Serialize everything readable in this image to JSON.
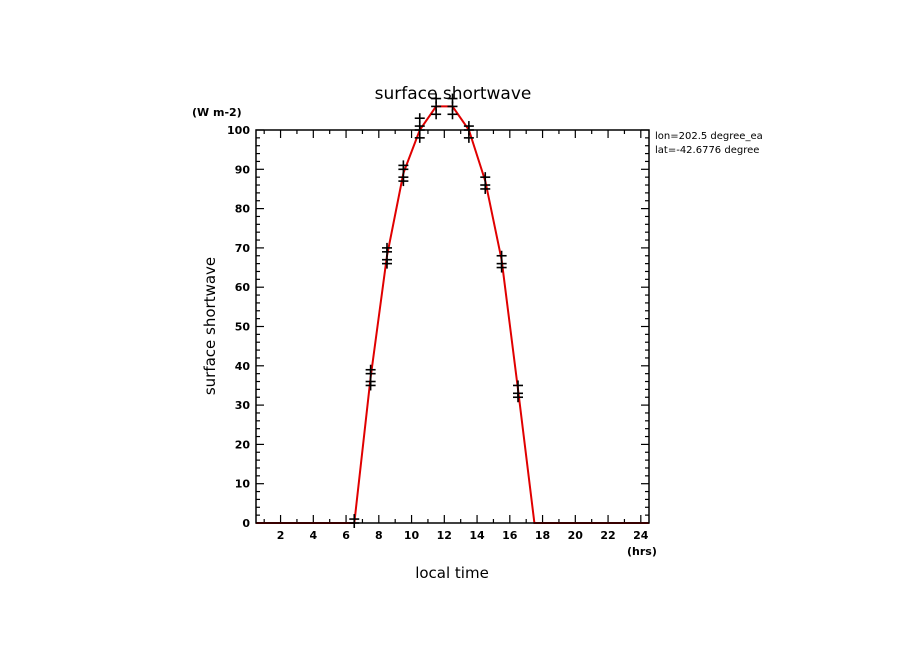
{
  "chart_data": {
    "type": "line",
    "title": "surface shortwave",
    "xlabel": "local time",
    "ylabel": "surface shortwave",
    "y_units": "(W m-2)",
    "x_units": "(hrs)",
    "annotations": [
      "lon=202.5 degree_ea",
      "lat=-42.6776 degree"
    ],
    "xlim": [
      0.5,
      24.5
    ],
    "ylim": [
      0,
      100
    ],
    "x_ticks": [
      2,
      4,
      6,
      8,
      10,
      12,
      14,
      16,
      18,
      20,
      22,
      24
    ],
    "y_ticks": [
      0,
      10,
      20,
      30,
      40,
      50,
      60,
      70,
      80,
      90,
      100
    ],
    "grid": false,
    "series": [
      {
        "style": "line",
        "color": "#e00000",
        "x": [
          0.5,
          1.5,
          2.5,
          3.5,
          4.5,
          5.5,
          6.5,
          7.5,
          8.5,
          9.5,
          10.5,
          11.5,
          12.5,
          13.5,
          14.5,
          15.5,
          16.5,
          17.5,
          18.5,
          19.5,
          20.5,
          21.5,
          22.5,
          23.5,
          24.5
        ],
        "y": [
          0,
          0,
          0,
          0,
          0,
          0,
          0,
          37,
          68,
          89,
          100,
          106,
          106,
          100,
          87,
          67,
          34,
          0,
          0,
          0,
          0,
          0,
          0,
          0,
          0
        ]
      },
      {
        "style": "markers",
        "marker": "plus",
        "color": "#000000",
        "points": [
          [
            6.5,
            0
          ],
          [
            6.5,
            1
          ],
          [
            7.5,
            35
          ],
          [
            7.5,
            36
          ],
          [
            7.5,
            38
          ],
          [
            7.5,
            39
          ],
          [
            8.5,
            66
          ],
          [
            8.5,
            67
          ],
          [
            8.5,
            69
          ],
          [
            8.5,
            70
          ],
          [
            9.5,
            87
          ],
          [
            9.5,
            88
          ],
          [
            9.5,
            90
          ],
          [
            9.5,
            91
          ],
          [
            10.5,
            98
          ],
          [
            10.5,
            100
          ],
          [
            10.5,
            101
          ],
          [
            10.5,
            103
          ],
          [
            11.5,
            104
          ],
          [
            11.5,
            106
          ],
          [
            11.5,
            108
          ],
          [
            12.5,
            104
          ],
          [
            12.5,
            106
          ],
          [
            12.5,
            108
          ],
          [
            13.5,
            98
          ],
          [
            13.5,
            100
          ],
          [
            13.5,
            101
          ],
          [
            14.5,
            85
          ],
          [
            14.5,
            86
          ],
          [
            14.5,
            88
          ],
          [
            15.5,
            65
          ],
          [
            15.5,
            66
          ],
          [
            15.5,
            68
          ],
          [
            16.5,
            32
          ],
          [
            16.5,
            33
          ],
          [
            16.5,
            35
          ]
        ]
      }
    ]
  }
}
